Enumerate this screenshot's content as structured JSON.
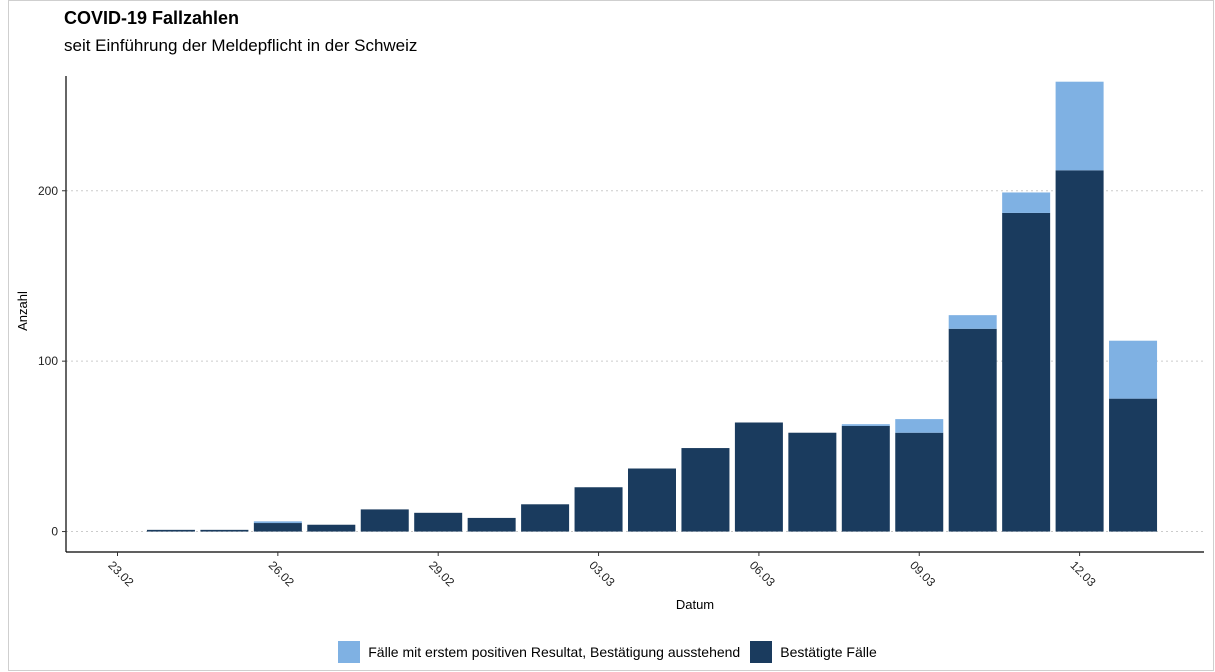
{
  "colors": {
    "pending": "#7fb1e3",
    "confirmed": "#1a3b5e",
    "grid": "#cccccc",
    "axis": "#000000"
  },
  "chart_data": {
    "type": "bar",
    "stacked": true,
    "title": "COVID-19 Fallzahlen",
    "subtitle": "seit Einführung der Meldepflicht in der Schweiz",
    "xlabel": "Datum",
    "ylabel": "Anzahl",
    "ylim": [
      -12,
      265
    ],
    "yticks": [
      0,
      100,
      200
    ],
    "grid": "horizontal dotted",
    "legend_position": "bottom",
    "categories": [
      "23.02",
      "24.02",
      "25.02",
      "26.02",
      "27.02",
      "28.02",
      "29.02",
      "01.03",
      "02.03",
      "03.03",
      "04.03",
      "05.03",
      "06.03",
      "07.03",
      "08.03",
      "09.03",
      "10.03",
      "11.03",
      "12.03",
      "13.03"
    ],
    "xtick_labels": [
      "23.02",
      "26.02",
      "29.02",
      "03.03",
      "06.03",
      "09.03",
      "12.03"
    ],
    "series": [
      {
        "name": "Bestätigte Fälle",
        "key": "confirmed",
        "values": [
          0,
          1,
          1,
          5,
          4,
          13,
          11,
          8,
          16,
          26,
          37,
          49,
          64,
          58,
          62,
          58,
          119,
          187,
          212,
          78
        ]
      },
      {
        "name": "Fälle mit erstem positiven Resultat, Bestätigung ausstehend",
        "key": "pending",
        "values": [
          0,
          0,
          0,
          1,
          0,
          0,
          0,
          0,
          0,
          0,
          0,
          0,
          0,
          0,
          1,
          8,
          8,
          12,
          52,
          34
        ]
      }
    ]
  },
  "legend": {
    "pending_label": "Fälle mit erstem positiven Resultat, Bestätigung ausstehend",
    "confirmed_label": "Bestätigte Fälle"
  }
}
